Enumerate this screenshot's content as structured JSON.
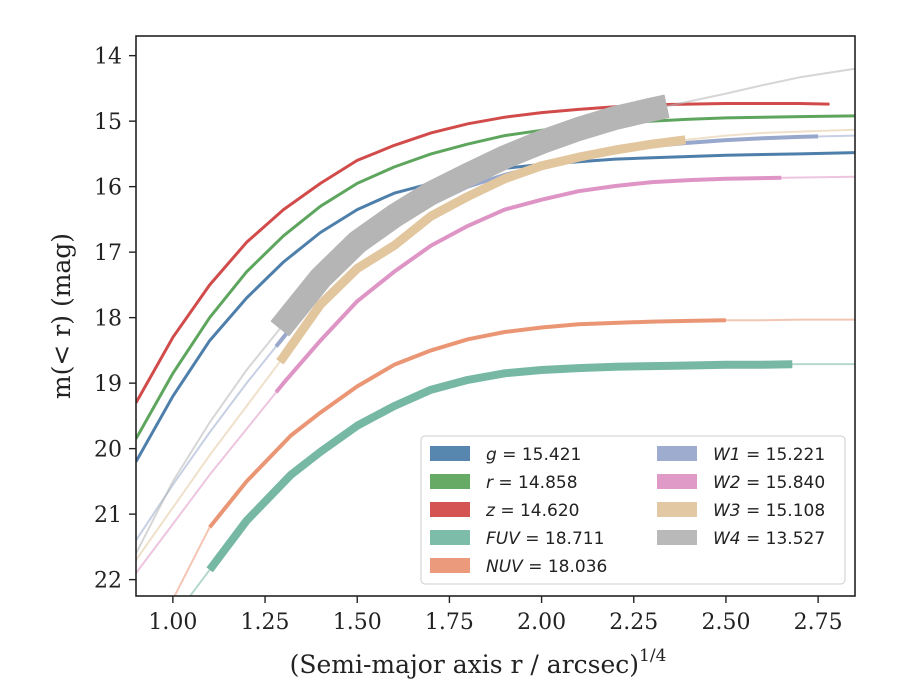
{
  "chart_data": {
    "type": "line",
    "xlabel": "(Semi-major axis r / arcsec)",
    "xlabel_sup": "1/4",
    "ylabel": "m(< r) (mag)",
    "xlim": [
      0.9,
      2.85
    ],
    "ylim": [
      22.25,
      13.7
    ],
    "y_inverted": true,
    "grid": false,
    "legend_position": "lower-right",
    "x_ticks": [
      "1.00",
      "1.25",
      "1.50",
      "1.75",
      "2.00",
      "2.25",
      "2.50",
      "2.75"
    ],
    "y_ticks": [
      "14",
      "15",
      "16",
      "17",
      "18",
      "19",
      "20",
      "21",
      "22"
    ],
    "series": [
      {
        "key": "g",
        "var": "g",
        "value": "15.421",
        "color": "#4e7fab",
        "points": [
          [
            0.9,
            20.2
          ],
          [
            1.0,
            19.2
          ],
          [
            1.1,
            18.35
          ],
          [
            1.2,
            17.7
          ],
          [
            1.3,
            17.15
          ],
          [
            1.4,
            16.7
          ],
          [
            1.5,
            16.35
          ],
          [
            1.6,
            16.1
          ],
          [
            1.7,
            15.95
          ],
          [
            1.8,
            15.8
          ],
          [
            1.9,
            15.72
          ],
          [
            2.0,
            15.66
          ],
          [
            2.1,
            15.62
          ],
          [
            2.2,
            15.58
          ],
          [
            2.3,
            15.56
          ],
          [
            2.4,
            15.54
          ],
          [
            2.5,
            15.52
          ],
          [
            2.6,
            15.51
          ],
          [
            2.7,
            15.5
          ],
          [
            2.85,
            15.48
          ]
        ],
        "solid_end": 2.85,
        "band": 3
      },
      {
        "key": "r",
        "var": "r",
        "value": "14.858",
        "color": "#5ea55e",
        "points": [
          [
            0.9,
            19.85
          ],
          [
            1.0,
            18.85
          ],
          [
            1.1,
            18.0
          ],
          [
            1.2,
            17.3
          ],
          [
            1.3,
            16.75
          ],
          [
            1.4,
            16.3
          ],
          [
            1.5,
            15.95
          ],
          [
            1.6,
            15.7
          ],
          [
            1.7,
            15.5
          ],
          [
            1.8,
            15.35
          ],
          [
            1.9,
            15.22
          ],
          [
            2.0,
            15.14
          ],
          [
            2.1,
            15.08
          ],
          [
            2.2,
            15.03
          ],
          [
            2.3,
            15.0
          ],
          [
            2.4,
            14.97
          ],
          [
            2.5,
            14.95
          ],
          [
            2.6,
            14.94
          ],
          [
            2.7,
            14.93
          ],
          [
            2.85,
            14.92
          ]
        ],
        "solid_end": 2.85,
        "band": 3
      },
      {
        "key": "z",
        "var": "z",
        "value": "14.620",
        "color": "#d24b4b",
        "points": [
          [
            0.9,
            19.3
          ],
          [
            1.0,
            18.3
          ],
          [
            1.1,
            17.5
          ],
          [
            1.2,
            16.85
          ],
          [
            1.3,
            16.35
          ],
          [
            1.4,
            15.95
          ],
          [
            1.5,
            15.6
          ],
          [
            1.6,
            15.37
          ],
          [
            1.7,
            15.18
          ],
          [
            1.8,
            15.04
          ],
          [
            1.9,
            14.94
          ],
          [
            2.0,
            14.87
          ],
          [
            2.1,
            14.82
          ],
          [
            2.2,
            14.78
          ],
          [
            2.3,
            14.75
          ],
          [
            2.4,
            14.74
          ],
          [
            2.5,
            14.73
          ],
          [
            2.6,
            14.73
          ],
          [
            2.7,
            14.73
          ],
          [
            2.78,
            14.74
          ]
        ],
        "solid_end": 2.78,
        "band": 3
      },
      {
        "key": "fuv",
        "var": "FUV",
        "value": "18.711",
        "color": "#76b8a4",
        "points": [
          [
            0.9,
            23.4
          ],
          [
            1.0,
            22.6
          ],
          [
            1.1,
            21.85
          ],
          [
            1.2,
            21.1
          ],
          [
            1.32,
            20.4
          ],
          [
            1.4,
            20.05
          ],
          [
            1.5,
            19.65
          ],
          [
            1.6,
            19.35
          ],
          [
            1.7,
            19.1
          ],
          [
            1.8,
            18.95
          ],
          [
            1.9,
            18.85
          ],
          [
            2.0,
            18.8
          ],
          [
            2.1,
            18.77
          ],
          [
            2.2,
            18.75
          ],
          [
            2.3,
            18.74
          ],
          [
            2.4,
            18.73
          ],
          [
            2.5,
            18.72
          ],
          [
            2.6,
            18.72
          ],
          [
            2.7,
            18.71
          ],
          [
            2.85,
            18.71
          ]
        ],
        "solid_start": 1.1,
        "solid_end": 2.68,
        "band": 8
      },
      {
        "key": "nuv",
        "var": "NUV",
        "value": "18.036",
        "color": "#ea9675",
        "points": [
          [
            0.9,
            23.1
          ],
          [
            1.0,
            22.3
          ],
          [
            1.1,
            21.2
          ],
          [
            1.2,
            20.5
          ],
          [
            1.32,
            19.8
          ],
          [
            1.4,
            19.45
          ],
          [
            1.5,
            19.05
          ],
          [
            1.6,
            18.72
          ],
          [
            1.7,
            18.5
          ],
          [
            1.8,
            18.33
          ],
          [
            1.9,
            18.22
          ],
          [
            2.0,
            18.15
          ],
          [
            2.1,
            18.1
          ],
          [
            2.2,
            18.08
          ],
          [
            2.3,
            18.06
          ],
          [
            2.4,
            18.05
          ],
          [
            2.5,
            18.04
          ],
          [
            2.6,
            18.04
          ],
          [
            2.7,
            18.03
          ],
          [
            2.85,
            18.03
          ]
        ],
        "solid_start": 1.1,
        "solid_end": 2.5,
        "band": 4
      },
      {
        "key": "w1",
        "var": "W1",
        "value": "15.221",
        "color": "#98a8cc",
        "points": [
          [
            0.9,
            21.4
          ],
          [
            1.0,
            20.55
          ],
          [
            1.1,
            19.75
          ],
          [
            1.2,
            19.0
          ],
          [
            1.3,
            18.3
          ],
          [
            1.4,
            17.6
          ],
          [
            1.5,
            17.0
          ],
          [
            1.6,
            16.6
          ],
          [
            1.7,
            16.27
          ],
          [
            1.8,
            16.0
          ],
          [
            1.9,
            15.82
          ],
          [
            2.0,
            15.68
          ],
          [
            2.1,
            15.56
          ],
          [
            2.2,
            15.46
          ],
          [
            2.3,
            15.38
          ],
          [
            2.4,
            15.33
          ],
          [
            2.5,
            15.29
          ],
          [
            2.6,
            15.26
          ],
          [
            2.7,
            15.24
          ],
          [
            2.85,
            15.22
          ]
        ],
        "solid_start": 1.28,
        "solid_end": 2.75,
        "band": 4
      },
      {
        "key": "w2",
        "var": "W2",
        "value": "15.840",
        "color": "#de95c5",
        "points": [
          [
            0.9,
            21.9
          ],
          [
            1.0,
            21.15
          ],
          [
            1.1,
            20.4
          ],
          [
            1.2,
            19.7
          ],
          [
            1.3,
            19.0
          ],
          [
            1.4,
            18.35
          ],
          [
            1.5,
            17.75
          ],
          [
            1.6,
            17.3
          ],
          [
            1.7,
            16.9
          ],
          [
            1.8,
            16.6
          ],
          [
            1.9,
            16.35
          ],
          [
            2.0,
            16.2
          ],
          [
            2.1,
            16.07
          ],
          [
            2.2,
            15.99
          ],
          [
            2.3,
            15.93
          ],
          [
            2.4,
            15.9
          ],
          [
            2.5,
            15.88
          ],
          [
            2.6,
            15.87
          ],
          [
            2.7,
            15.86
          ],
          [
            2.85,
            15.85
          ]
        ],
        "solid_start": 1.28,
        "solid_end": 2.65,
        "band": 4
      },
      {
        "key": "w3",
        "var": "W3",
        "value": "15.108",
        "color": "#e2c69e",
        "points": [
          [
            0.9,
            21.7
          ],
          [
            1.0,
            20.9
          ],
          [
            1.1,
            20.1
          ],
          [
            1.2,
            19.35
          ],
          [
            1.3,
            18.6
          ],
          [
            1.4,
            17.8
          ],
          [
            1.5,
            17.25
          ],
          [
            1.6,
            16.9
          ],
          [
            1.7,
            16.45
          ],
          [
            1.8,
            16.15
          ],
          [
            1.9,
            15.88
          ],
          [
            2.0,
            15.68
          ],
          [
            2.1,
            15.55
          ],
          [
            2.2,
            15.44
          ],
          [
            2.3,
            15.35
          ],
          [
            2.4,
            15.28
          ],
          [
            2.5,
            15.22
          ],
          [
            2.6,
            15.18
          ],
          [
            2.7,
            15.16
          ],
          [
            2.85,
            15.13
          ]
        ],
        "solid_start": 1.29,
        "solid_end": 2.39,
        "band": 9
      },
      {
        "key": "w4",
        "var": "W4",
        "value": "13.527",
        "color": "#b5b5b5",
        "points": [
          [
            0.9,
            21.6
          ],
          [
            1.0,
            20.5
          ],
          [
            1.1,
            19.6
          ],
          [
            1.2,
            18.8
          ],
          [
            1.3,
            18.1
          ],
          [
            1.4,
            17.4
          ],
          [
            1.5,
            16.85
          ],
          [
            1.6,
            16.45
          ],
          [
            1.7,
            16.1
          ],
          [
            1.8,
            15.82
          ],
          [
            1.9,
            15.55
          ],
          [
            2.0,
            15.32
          ],
          [
            2.1,
            15.12
          ],
          [
            2.2,
            14.95
          ],
          [
            2.3,
            14.82
          ],
          [
            2.4,
            14.7
          ],
          [
            2.5,
            14.58
          ],
          [
            2.6,
            14.45
          ],
          [
            2.7,
            14.33
          ],
          [
            2.85,
            14.2
          ]
        ],
        "solid_start": 1.29,
        "solid_end": 2.34,
        "band": 24
      }
    ]
  }
}
